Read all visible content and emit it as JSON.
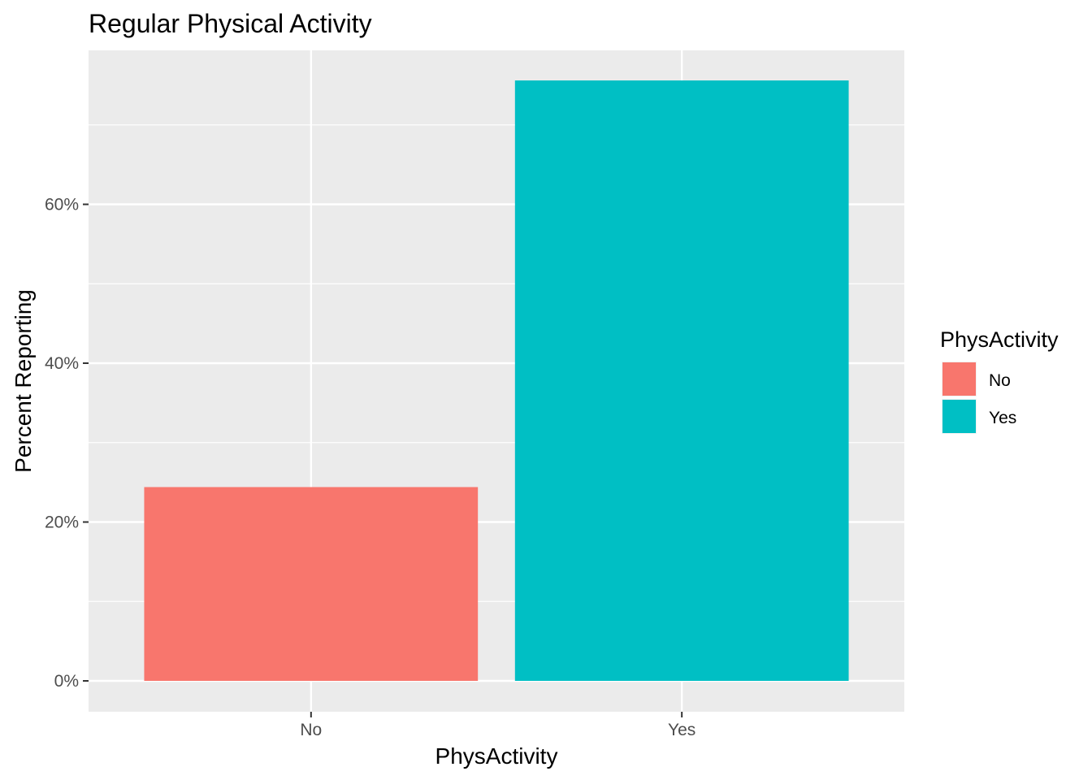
{
  "chart_data": {
    "type": "bar",
    "title": "Regular Physical Activity",
    "xlabel": "PhysActivity",
    "ylabel": "Percent Reporting",
    "categories": [
      "No",
      "Yes"
    ],
    "values": [
      24.4,
      75.6
    ],
    "colors": [
      "#F8766D",
      "#00BFC4"
    ],
    "ylim": [
      0,
      79.5
    ],
    "y_ticks": [
      0,
      20,
      40,
      60
    ],
    "y_tick_labels": [
      "0%",
      "20%",
      "40%",
      "60%"
    ],
    "grid": true,
    "legend": {
      "title": "PhysActivity",
      "placement": "right",
      "entries": [
        "No",
        "Yes"
      ]
    }
  }
}
